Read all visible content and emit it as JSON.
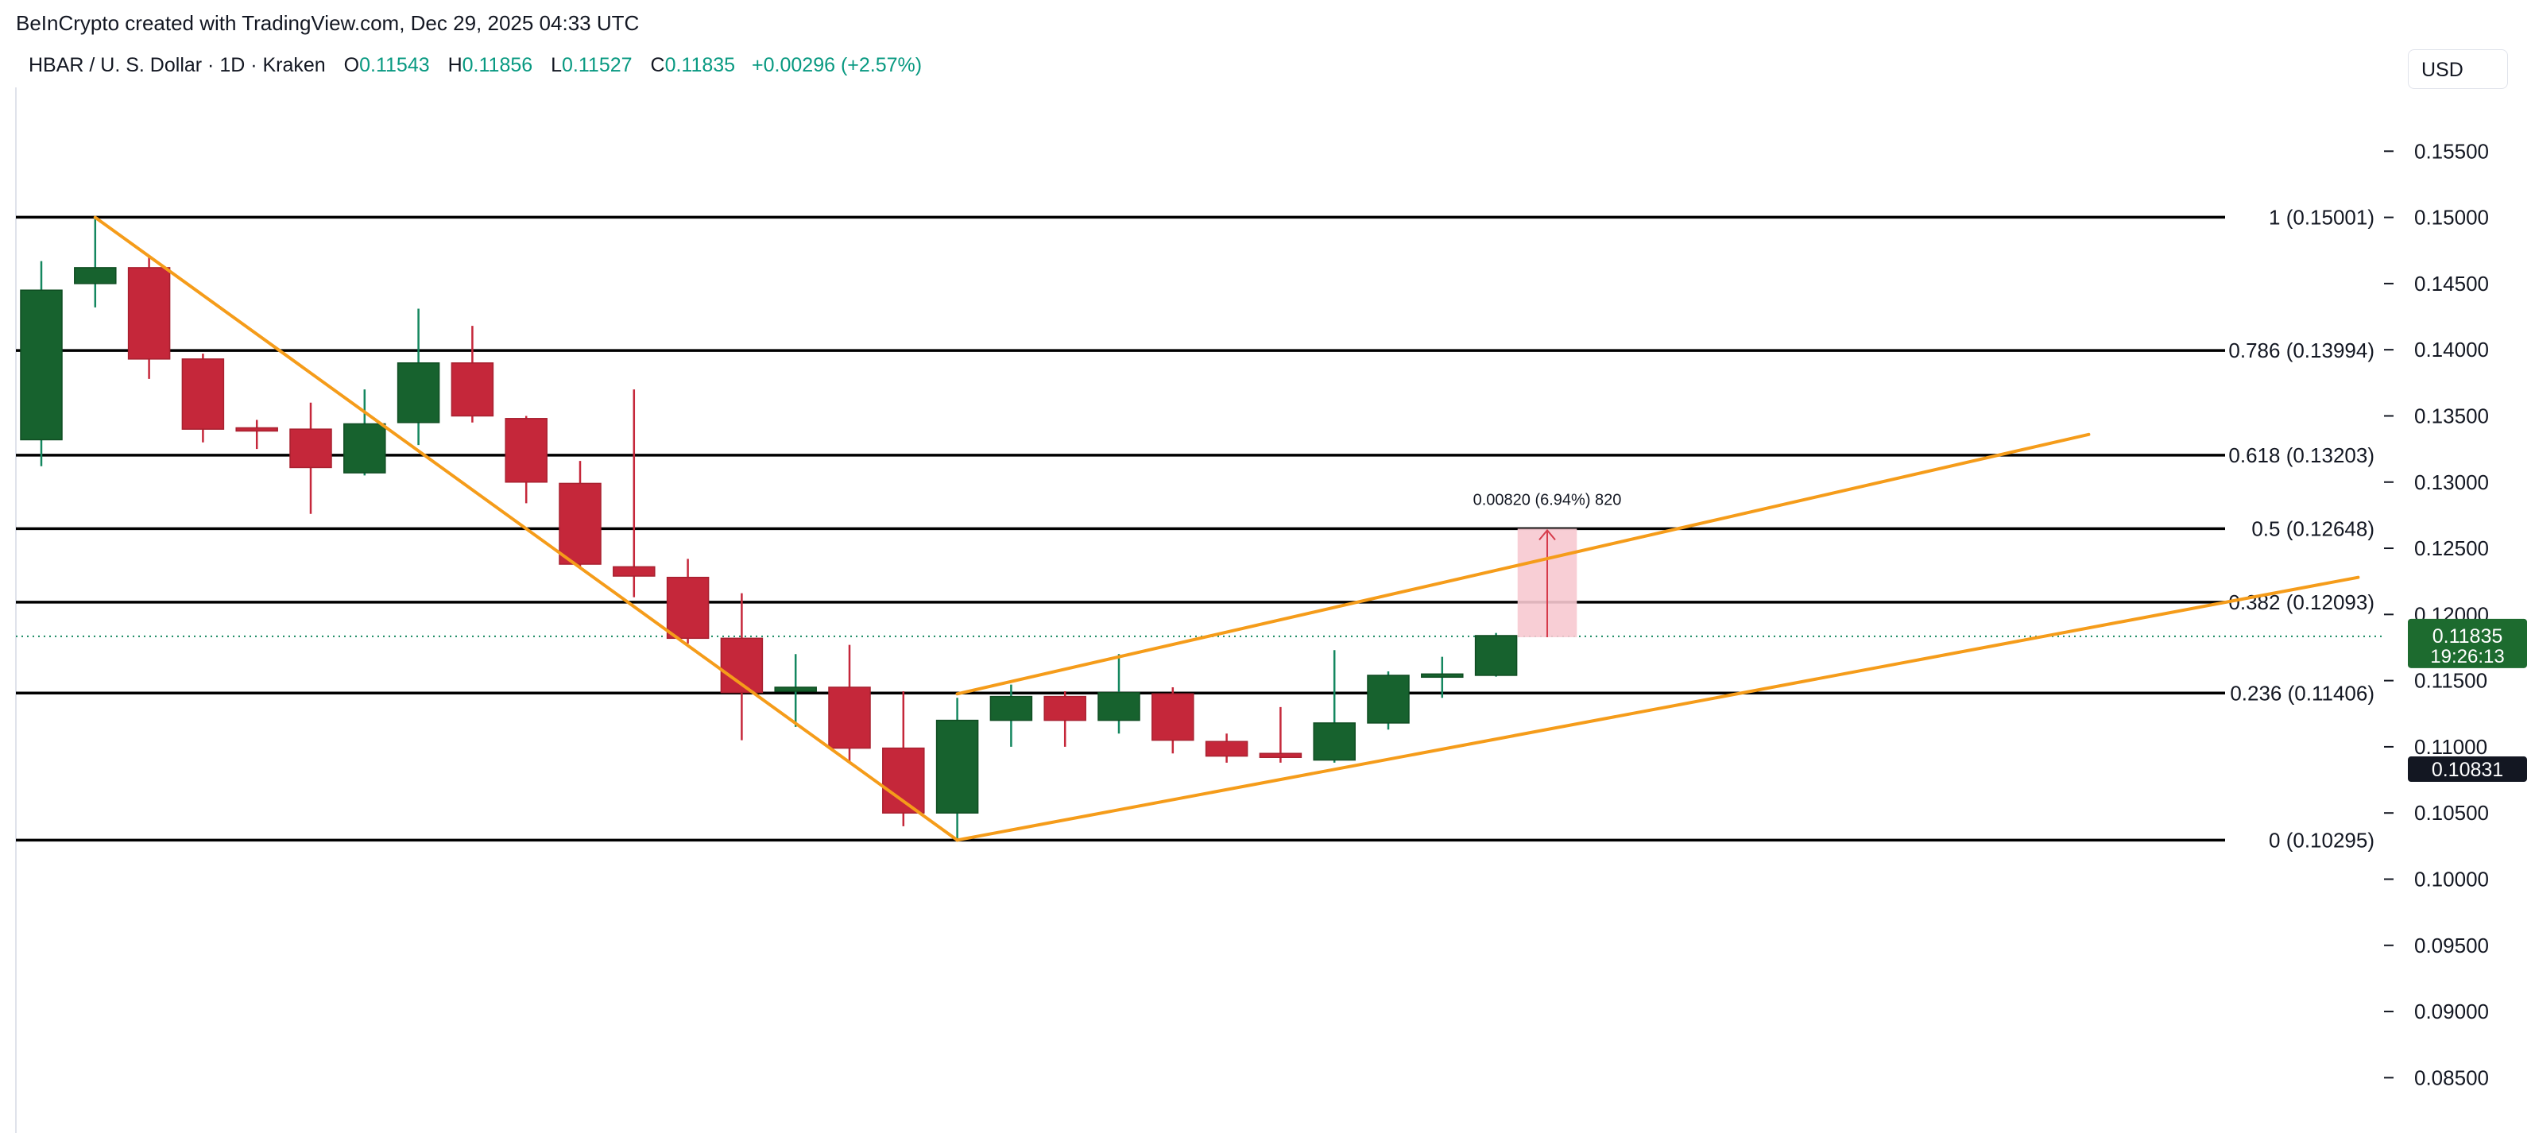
{
  "source_caption": "BeInCrypto created with TradingView.com, Dec 29, 2025 04:33 UTC",
  "legend": {
    "symbol": "HBAR / U. S. Dollar · 1D · Kraken",
    "o_label": "O",
    "o_value": "0.11543",
    "h_label": "H",
    "h_value": "0.11856",
    "l_label": "L",
    "l_value": "0.11527",
    "c_label": "C",
    "c_value": "0.11835",
    "change": "+0.00296 (+2.57%)"
  },
  "currency_button": "USD",
  "colors": {
    "up": "#17622e",
    "up_wick": "#14875f",
    "down": "#c5273a",
    "fib_line": "#000000",
    "trendline": "#f59c1a",
    "price_tag": "#1d6b2f",
    "measure_fill": "#f7c9d0",
    "measure_line": "#d63a4a"
  },
  "chart_data": {
    "type": "candlestick",
    "title": "HBAR / U. S. Dollar · 1D · Kraken",
    "ylim": [
      0.0825,
      0.1585
    ],
    "grid": false,
    "y_ticks": [
      "0.15500",
      "0.15000",
      "0.14500",
      "0.14000",
      "0.13500",
      "0.13000",
      "0.12500",
      "0.12000",
      "0.11500",
      "0.11000",
      "0.10500",
      "0.10000",
      "0.09500",
      "0.09000",
      "0.08500"
    ],
    "candles": [
      {
        "o": 0.1332,
        "h": 0.1467,
        "l": 0.1312,
        "c": 0.1445
      },
      {
        "o": 0.145,
        "h": 0.15,
        "l": 0.1432,
        "c": 0.1462
      },
      {
        "o": 0.1462,
        "h": 0.147,
        "l": 0.1378,
        "c": 0.1393
      },
      {
        "o": 0.1393,
        "h": 0.1397,
        "l": 0.133,
        "c": 0.134
      },
      {
        "o": 0.1341,
        "h": 0.1347,
        "l": 0.1325,
        "c": 0.134
      },
      {
        "o": 0.134,
        "h": 0.136,
        "l": 0.1276,
        "c": 0.1311
      },
      {
        "o": 0.1307,
        "h": 0.137,
        "l": 0.1305,
        "c": 0.1344
      },
      {
        "o": 0.1345,
        "h": 0.1431,
        "l": 0.1328,
        "c": 0.139
      },
      {
        "o": 0.139,
        "h": 0.1418,
        "l": 0.1345,
        "c": 0.135
      },
      {
        "o": 0.1348,
        "h": 0.135,
        "l": 0.1284,
        "c": 0.13
      },
      {
        "o": 0.1299,
        "h": 0.1316,
        "l": 0.1235,
        "c": 0.1238
      },
      {
        "o": 0.1236,
        "h": 0.137,
        "l": 0.1213,
        "c": 0.1229
      },
      {
        "o": 0.1228,
        "h": 0.1242,
        "l": 0.1178,
        "c": 0.1182
      },
      {
        "o": 0.1182,
        "h": 0.1216,
        "l": 0.1105,
        "c": 0.1141
      },
      {
        "o": 0.1142,
        "h": 0.117,
        "l": 0.1115,
        "c": 0.1145
      },
      {
        "o": 0.1145,
        "h": 0.1177,
        "l": 0.1088,
        "c": 0.1099
      },
      {
        "o": 0.1099,
        "h": 0.1142,
        "l": 0.104,
        "c": 0.105
      },
      {
        "o": 0.105,
        "h": 0.1137,
        "l": 0.1029,
        "c": 0.112
      },
      {
        "o": 0.112,
        "h": 0.1147,
        "l": 0.11,
        "c": 0.1138
      },
      {
        "o": 0.1138,
        "h": 0.1142,
        "l": 0.11,
        "c": 0.112
      },
      {
        "o": 0.112,
        "h": 0.117,
        "l": 0.111,
        "c": 0.1141
      },
      {
        "o": 0.114,
        "h": 0.1145,
        "l": 0.1095,
        "c": 0.1105
      },
      {
        "o": 0.1104,
        "h": 0.111,
        "l": 0.1088,
        "c": 0.1093
      },
      {
        "o": 0.1095,
        "h": 0.113,
        "l": 0.1088,
        "c": 0.1092
      },
      {
        "o": 0.109,
        "h": 0.1173,
        "l": 0.1088,
        "c": 0.1118
      },
      {
        "o": 0.1118,
        "h": 0.1157,
        "l": 0.1113,
        "c": 0.1154
      },
      {
        "o": 0.1154,
        "h": 0.1168,
        "l": 0.1137,
        "c": 0.1155
      },
      {
        "o": 0.1154,
        "h": 0.1186,
        "l": 0.1153,
        "c": 0.1184
      }
    ],
    "fib_levels": [
      {
        "label": "1 (0.15001)",
        "value": 0.15001
      },
      {
        "label": "0.786 (0.13994)",
        "value": 0.13994
      },
      {
        "label": "0.618 (0.13203)",
        "value": 0.13203
      },
      {
        "label": "0.5 (0.12648)",
        "value": 0.12648
      },
      {
        "label": "0.382 (0.12093)",
        "value": 0.12093
      },
      {
        "label": "0.236 (0.11406)",
        "value": 0.11406
      },
      {
        "label": "0 (0.10295)",
        "value": 0.10295
      }
    ],
    "trendlines": [
      {
        "from": {
          "candle": 1,
          "price": 0.15
        },
        "to": {
          "candle": 17,
          "price": 0.10295
        }
      },
      {
        "from": {
          "candle": 17,
          "price": 0.114
        },
        "to": {
          "candle": 38,
          "price": 0.1336
        }
      },
      {
        "from": {
          "candle": 17,
          "price": 0.10295
        },
        "to": {
          "candle": 43,
          "price": 0.1228
        }
      }
    ],
    "measure": {
      "label": "0.00820 (6.94%) 820",
      "from_price": 0.11828,
      "to_price": 0.12648,
      "start_candle": 27.4,
      "end_candle": 28.5
    },
    "current_price": {
      "value": 0.11835,
      "label": "0.11835",
      "countdown": "19:26:13"
    },
    "marker": {
      "value": 0.10831,
      "label": "0.10831"
    }
  }
}
